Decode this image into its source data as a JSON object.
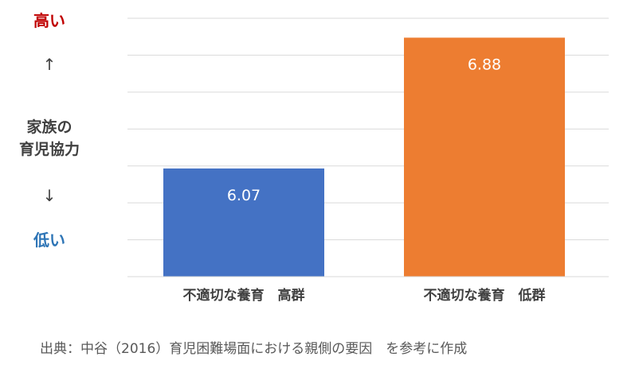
{
  "chart_data": {
    "type": "bar",
    "categories": [
      "不適切な養育　高群",
      "不適切な養育　低群"
    ],
    "values": [
      6.07,
      6.88
    ],
    "data_labels": [
      "6.07",
      "6.88"
    ],
    "colors": [
      "#4472c4",
      "#ed7d31"
    ],
    "title": "",
    "xlabel": "",
    "ylabel": "家族の育児協力",
    "ylabel_lines": [
      "家族の",
      "育児協力"
    ],
    "y_high_label": "高い",
    "y_low_label": "低い",
    "y_high_color": "#c00000",
    "y_low_color": "#2e75b6",
    "arrow_up": "↑",
    "arrow_down": "↓",
    "ylim": [
      5.4,
      7.0
    ],
    "gridlines": true,
    "tick_labels_shown": false
  },
  "source_note": "出典：中谷（2016）育児困難場面における親側の要因　を参考に作成"
}
